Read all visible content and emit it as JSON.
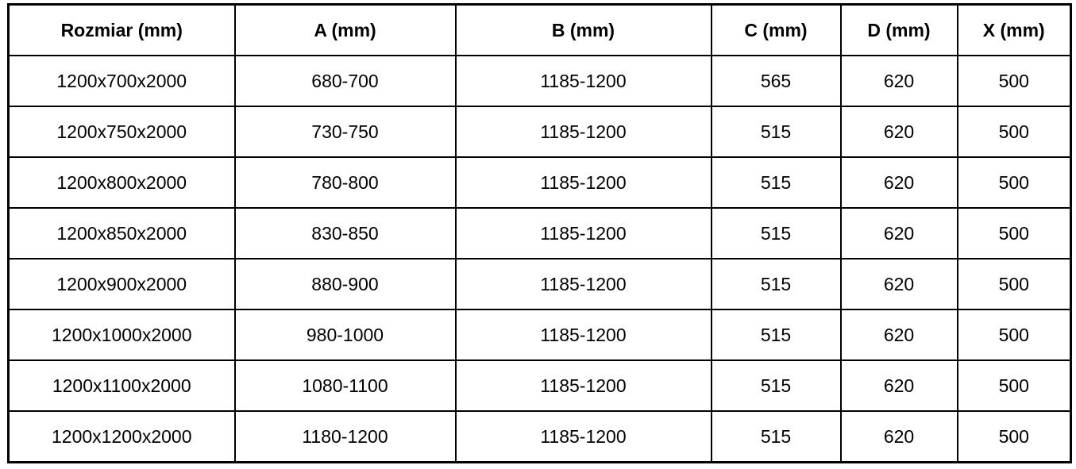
{
  "colors": {
    "border": "#000000",
    "text": "#000000",
    "background": "#ffffff"
  },
  "table": {
    "columns": [
      "Rozmiar (mm)",
      "A (mm)",
      "B (mm)",
      "C (mm)",
      "D (mm)",
      "X (mm)"
    ],
    "rows": [
      [
        "1200x700x2000",
        "680-700",
        "1185-1200",
        "565",
        "620",
        "500"
      ],
      [
        "1200x750x2000",
        "730-750",
        "1185-1200",
        "515",
        "620",
        "500"
      ],
      [
        "1200x800x2000",
        "780-800",
        "1185-1200",
        "515",
        "620",
        "500"
      ],
      [
        "1200x850x2000",
        "830-850",
        "1185-1200",
        "515",
        "620",
        "500"
      ],
      [
        "1200x900x2000",
        "880-900",
        "1185-1200",
        "515",
        "620",
        "500"
      ],
      [
        "1200x1000x2000",
        "980-1000",
        "1185-1200",
        "515",
        "620",
        "500"
      ],
      [
        "1200x1100x2000",
        "1080-1100",
        "1185-1200",
        "515",
        "620",
        "500"
      ],
      [
        "1200x1200x2000",
        "1180-1200",
        "1185-1200",
        "515",
        "620",
        "500"
      ]
    ]
  }
}
